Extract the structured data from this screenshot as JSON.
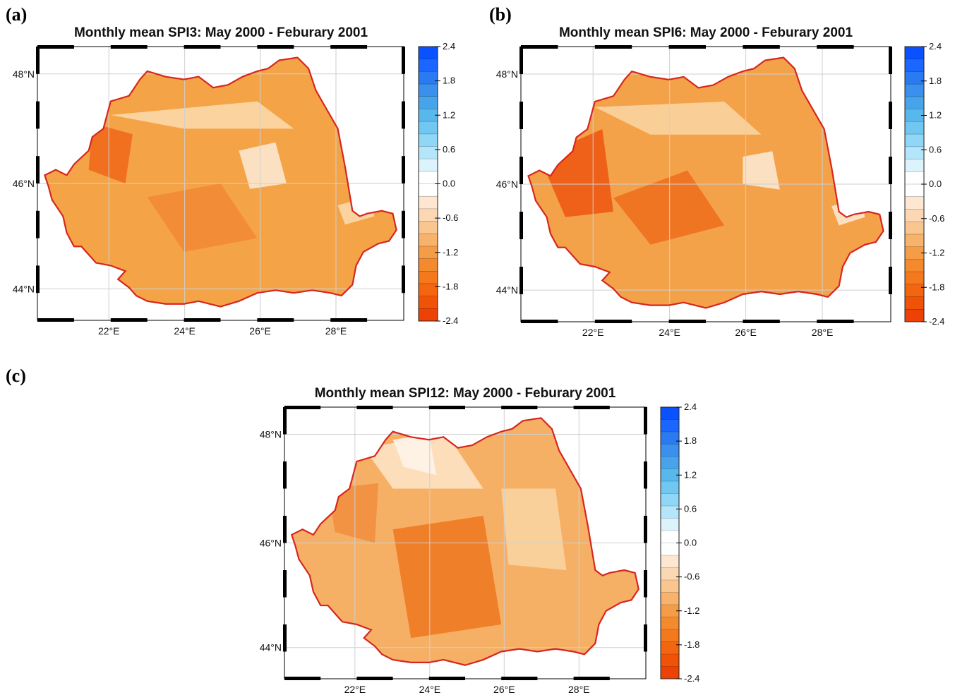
{
  "colorbar": {
    "tick_labels": [
      "2.4",
      "1.8",
      "1.2",
      "0.6",
      "0.0",
      "-0.6",
      "-1.2",
      "-1.8",
      "-2.4"
    ],
    "colors": [
      "#0a52ff",
      "#1a66ff",
      "#2a7bf2",
      "#3a90ec",
      "#48a4ea",
      "#58b8ec",
      "#70c8f2",
      "#8fd6f7",
      "#b4e5fa",
      "#dcf3fc",
      "#ffffff",
      "#ffffff",
      "#fde7d1",
      "#fbd8b3",
      "#f9c690",
      "#f7b26b",
      "#f59c47",
      "#f48a2e",
      "#f4781c",
      "#f3650f",
      "#f05208",
      "#ee4106"
    ],
    "range": [
      -2.4,
      2.4
    ]
  },
  "panels": [
    {
      "letter": "(a)",
      "title": "Monthly mean SPI3: May 2000 - Feburary 2001",
      "lon_labels": [
        "22°E",
        "24°E",
        "26°E",
        "28°E"
      ],
      "lat_labels": [
        "48°N",
        "46°N",
        "44°N"
      ],
      "fill": "#f4a447",
      "patches": [
        {
          "c": "#fbd8a8",
          "pts": [
            [
              0.2,
              0.25
            ],
            [
              0.6,
              0.2
            ],
            [
              0.7,
              0.3
            ],
            [
              0.4,
              0.3
            ]
          ]
        },
        {
          "c": "#fde7cf",
          "pts": [
            [
              0.55,
              0.38
            ],
            [
              0.65,
              0.35
            ],
            [
              0.68,
              0.5
            ],
            [
              0.58,
              0.52
            ]
          ]
        },
        {
          "c": "#ef6a1c",
          "pts": [
            [
              0.15,
              0.28
            ],
            [
              0.26,
              0.32
            ],
            [
              0.24,
              0.5
            ],
            [
              0.14,
              0.45
            ]
          ]
        },
        {
          "c": "#f38a35",
          "pts": [
            [
              0.3,
              0.55
            ],
            [
              0.5,
              0.5
            ],
            [
              0.6,
              0.7
            ],
            [
              0.4,
              0.75
            ]
          ]
        },
        {
          "c": "#fbd8a8",
          "pts": [
            [
              0.82,
              0.58
            ],
            [
              0.9,
              0.55
            ],
            [
              0.92,
              0.62
            ],
            [
              0.84,
              0.65
            ]
          ]
        }
      ]
    },
    {
      "letter": "(b)",
      "title": "Monthly mean SPI6: May 2000 - Feburary 2001",
      "lon_labels": [
        "22°E",
        "24°E",
        "26°E",
        "28°E"
      ],
      "lat_labels": [
        "48°N",
        "46°N",
        "44°N"
      ],
      "fill": "#f4a24a",
      "patches": [
        {
          "c": "#fbd4a0",
          "pts": [
            [
              0.2,
              0.22
            ],
            [
              0.55,
              0.2
            ],
            [
              0.65,
              0.32
            ],
            [
              0.35,
              0.32
            ]
          ]
        },
        {
          "c": "#fde7cf",
          "pts": [
            [
              0.6,
              0.4
            ],
            [
              0.68,
              0.38
            ],
            [
              0.7,
              0.52
            ],
            [
              0.6,
              0.5
            ]
          ]
        },
        {
          "c": "#ee5a14",
          "pts": [
            [
              0.05,
              0.4
            ],
            [
              0.22,
              0.3
            ],
            [
              0.25,
              0.6
            ],
            [
              0.12,
              0.62
            ]
          ]
        },
        {
          "c": "#f0701f",
          "pts": [
            [
              0.25,
              0.55
            ],
            [
              0.45,
              0.45
            ],
            [
              0.55,
              0.65
            ],
            [
              0.35,
              0.72
            ]
          ]
        },
        {
          "c": "#fde7cf",
          "pts": [
            [
              0.84,
              0.58
            ],
            [
              0.92,
              0.55
            ],
            [
              0.93,
              0.62
            ],
            [
              0.86,
              0.65
            ]
          ]
        }
      ]
    },
    {
      "letter": "(c)",
      "title": "Monthly mean SPI12: May 2000 - Feburary 2001",
      "lon_labels": [
        "22°E",
        "24°E",
        "26°E",
        "28°E"
      ],
      "lat_labels": [
        "48°N",
        "46°N",
        "44°N"
      ],
      "fill": "#f6b066",
      "patches": [
        {
          "c": "#fde3c4",
          "pts": [
            [
              0.22,
              0.15
            ],
            [
              0.45,
              0.1
            ],
            [
              0.55,
              0.3
            ],
            [
              0.3,
              0.3
            ]
          ]
        },
        {
          "c": "#fef4ea",
          "pts": [
            [
              0.3,
              0.12
            ],
            [
              0.4,
              0.1
            ],
            [
              0.42,
              0.25
            ],
            [
              0.33,
              0.22
            ]
          ]
        },
        {
          "c": "#f07a24",
          "pts": [
            [
              0.3,
              0.45
            ],
            [
              0.55,
              0.4
            ],
            [
              0.6,
              0.8
            ],
            [
              0.35,
              0.85
            ]
          ]
        },
        {
          "c": "#fbd4a0",
          "pts": [
            [
              0.6,
              0.3
            ],
            [
              0.75,
              0.3
            ],
            [
              0.78,
              0.6
            ],
            [
              0.62,
              0.58
            ]
          ]
        },
        {
          "c": "#f29040",
          "pts": [
            [
              0.12,
              0.3
            ],
            [
              0.26,
              0.28
            ],
            [
              0.25,
              0.5
            ],
            [
              0.14,
              0.46
            ]
          ]
        }
      ]
    }
  ]
}
